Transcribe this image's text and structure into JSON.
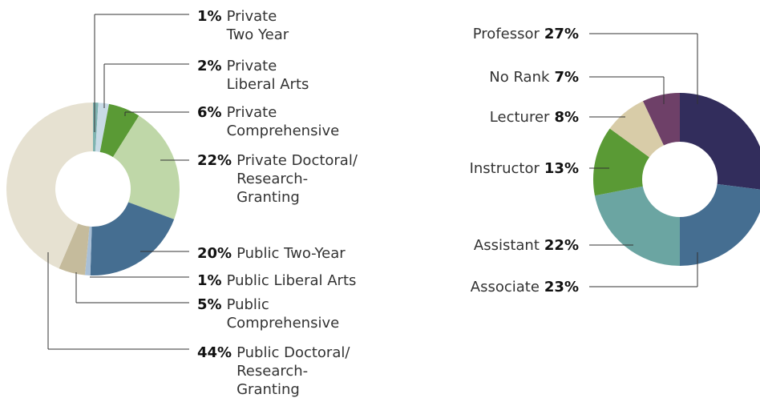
{
  "chart_data": [
    {
      "type": "donut",
      "categories": [
        [
          "Private",
          "Two Year"
        ],
        [
          "Private",
          "Liberal Arts"
        ],
        [
          "Private",
          "Comprehensive"
        ],
        [
          "Private Doctoral/",
          "Research-",
          "Granting"
        ],
        [
          "Public Two-Year"
        ],
        [
          "Public Liberal Arts"
        ],
        [
          "Public",
          "Comprehensive"
        ],
        [
          "Public Doctoral/",
          "Research-",
          "Granting"
        ]
      ],
      "values": [
        1,
        2,
        6,
        22,
        20,
        1,
        5,
        44
      ],
      "value_labels": [
        "1%",
        "2%",
        "6%",
        "22%",
        "20%",
        "1%",
        "5%",
        "44%"
      ],
      "colors": [
        "#7fb3b0",
        "#c8dbe6",
        "#5a9a35",
        "#bfd7a8",
        "#456e91",
        "#a8bfd6",
        "#c5bb9c",
        "#e6e1d1"
      ]
    },
    {
      "type": "donut",
      "categories": [
        "Professor",
        "Associate",
        "Assistant",
        "Instructor",
        "Lecturer",
        "No Rank"
      ],
      "values": [
        27,
        23,
        22,
        13,
        8,
        7
      ],
      "value_labels": [
        "27%",
        "23%",
        "22%",
        "13%",
        "8%",
        "7%"
      ],
      "colors": [
        "#322d5c",
        "#456e91",
        "#6ba5a2",
        "#5a9a35",
        "#d8cca8",
        "#6e4068"
      ]
    }
  ]
}
